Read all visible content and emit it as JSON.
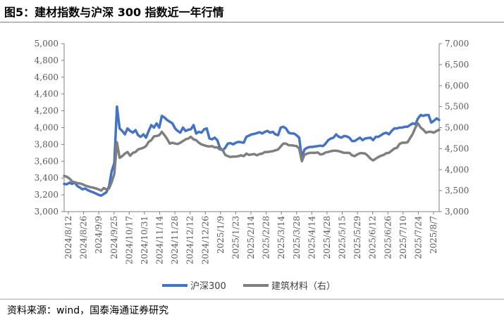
{
  "header": {
    "title": "图5：建材指数与沪深 300 指数近一年行情"
  },
  "footer": {
    "source": "资料来源：wind，国泰海通证券研究"
  },
  "chart_data": {
    "type": "line",
    "title": "",
    "legend_position": "bottom",
    "grid": false,
    "x_tick_labels": [
      "2024/8/12",
      "2024/8/26",
      "2024/9/9",
      "2024/9/25",
      "2024/10/17",
      "2024/10/31",
      "2024/11/14",
      "2024/11/28",
      "2024/12/12",
      "2024/12/26",
      "2025/1/9",
      "2025/1/23",
      "2025/2/14",
      "2025/2/28",
      "2025/3/14",
      "2025/3/28",
      "2025/4/14",
      "2025/4/28",
      "2025/5/15",
      "2025/5/29",
      "2025/6/12",
      "2025/6/26",
      "2025/7/10",
      "2025/7/24",
      "2025/8/7"
    ],
    "y_left": {
      "min": 3000,
      "max": 5000,
      "step": 200,
      "tick_labels": [
        "3,000",
        "3,200",
        "3,400",
        "3,600",
        "3,800",
        "4,000",
        "4,200",
        "4,400",
        "4,600",
        "4,800",
        "5,000"
      ]
    },
    "y_right": {
      "min": 3000,
      "max": 7000,
      "step": 500,
      "tick_labels": [
        "3,000",
        "3,500",
        "4,000",
        "4,500",
        "5,000",
        "5,500",
        "6,000",
        "6,500",
        "7,000"
      ]
    },
    "series": [
      {
        "name": "沪深300",
        "axis": "left",
        "color": "#4472c4",
        "values": [
          3330,
          3325,
          3345,
          3330,
          3345,
          3305,
          3285,
          3265,
          3275,
          3255,
          3240,
          3230,
          3215,
          3200,
          3190,
          3210,
          3230,
          3300,
          3480,
          3580,
          4250,
          3990,
          3960,
          3920,
          3990,
          3960,
          3940,
          3970,
          3910,
          3890,
          3920,
          3880,
          3960,
          4030,
          4000,
          4050,
          4000,
          4140,
          4120,
          4090,
          4070,
          4050,
          3990,
          3960,
          3940,
          4000,
          3960,
          3975,
          3980,
          4030,
          3930,
          3950,
          3940,
          3980,
          3990,
          3870,
          3860,
          3880,
          3850,
          3760,
          3730,
          3760,
          3810,
          3815,
          3800,
          3820,
          3830,
          3825,
          3820,
          3890,
          3905,
          3920,
          3925,
          3935,
          3945,
          3930,
          3950,
          3960,
          3940,
          3950,
          3920,
          3910,
          4000,
          4010,
          3990,
          3940,
          3930,
          3930,
          3910,
          3880,
          3640,
          3740,
          3760,
          3770,
          3770,
          3775,
          3780,
          3785,
          3780,
          3810,
          3850,
          3870,
          3880,
          3920,
          3890,
          3880,
          3900,
          3895,
          3880,
          3840,
          3840,
          3860,
          3880,
          3850,
          3870,
          3875,
          3880,
          3850,
          3890,
          3890,
          3910,
          3930,
          3940,
          3920,
          3960,
          3990,
          3990,
          4000,
          4000,
          4010,
          4010,
          4030,
          4050,
          4040,
          4110,
          4150,
          4140,
          4150,
          4150,
          4060,
          4080,
          4110,
          4090
        ]
      },
      {
        "name": "建筑材料（右）",
        "axis": "right",
        "color": "#7f7f7f",
        "values": [
          3850,
          3830,
          3790,
          3720,
          3700,
          3680,
          3670,
          3650,
          3620,
          3600,
          3580,
          3570,
          3550,
          3530,
          3500,
          3560,
          3530,
          3550,
          3700,
          3900,
          4650,
          4280,
          4320,
          4380,
          4420,
          4330,
          4400,
          4420,
          4480,
          4500,
          4520,
          4560,
          4660,
          4700,
          4790,
          4800,
          4820,
          4900,
          4820,
          4730,
          4620,
          4640,
          4620,
          4610,
          4640,
          4680,
          4720,
          4740,
          4780,
          4720,
          4700,
          4640,
          4600,
          4580,
          4560,
          4550,
          4560,
          4530,
          4530,
          4480,
          4470,
          4350,
          4320,
          4300,
          4310,
          4310,
          4320,
          4340,
          4320,
          4380,
          4350,
          4360,
          4370,
          4340,
          4370,
          4380,
          4420,
          4420,
          4430,
          4440,
          4460,
          4480,
          4550,
          4620,
          4620,
          4580,
          4580,
          4570,
          4560,
          4500,
          4200,
          4350,
          4380,
          4400,
          4400,
          4400,
          4410,
          4360,
          4370,
          4410,
          4420,
          4440,
          4450,
          4450,
          4440,
          4420,
          4400,
          4400,
          4400,
          4340,
          4320,
          4360,
          4390,
          4390,
          4380,
          4330,
          4260,
          4220,
          4260,
          4300,
          4330,
          4350,
          4390,
          4400,
          4450,
          4500,
          4520,
          4610,
          4640,
          4640,
          4650,
          4750,
          4850,
          5000,
          5100,
          5000,
          4950,
          4880,
          4900,
          4900,
          4880,
          4920,
          4950
        ]
      }
    ]
  }
}
